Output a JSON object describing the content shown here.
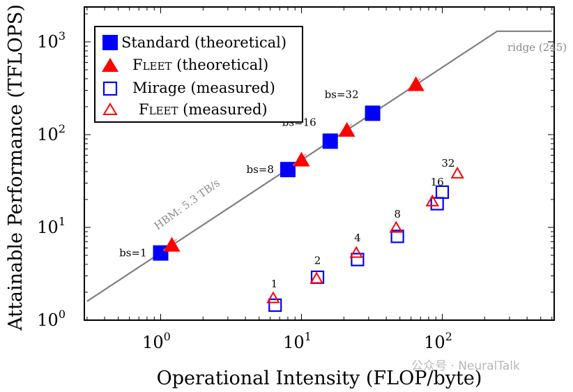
{
  "chart_data": {
    "type": "scatter",
    "xscale": "log",
    "yscale": "log",
    "xlim": [
      0.3,
      600
    ],
    "ylim": [
      1,
      2000
    ],
    "xlabel": "Operational Intensity (FLOP/byte)",
    "ylabel": "Attainable Performance (TFLOPS)",
    "xticks": [
      {
        "base": "10",
        "exp": "0",
        "value": 1
      },
      {
        "base": "10",
        "exp": "1",
        "value": 10
      },
      {
        "base": "10",
        "exp": "2",
        "value": 100
      }
    ],
    "yticks": [
      {
        "base": "10",
        "exp": "0",
        "value": 1
      },
      {
        "base": "10",
        "exp": "1",
        "value": 10
      },
      {
        "base": "10",
        "exp": "2",
        "value": 100
      },
      {
        "base": "10",
        "exp": "3",
        "value": 1000
      }
    ],
    "roofline": {
      "points": [
        [
          0.3,
          1.6
        ],
        [
          245,
          1300
        ],
        [
          600,
          1300
        ]
      ],
      "slope_label": "HBM: 5.3 TB/s",
      "ridge_label": "ridge (245)",
      "color": "#7f7f7f"
    },
    "series": [
      {
        "name": "Standard (theoretical)",
        "marker": "square-filled",
        "color": "#0000ff",
        "points": [
          [
            1,
            5.3
          ],
          [
            8,
            42
          ],
          [
            16,
            85
          ],
          [
            32,
            170
          ]
        ]
      },
      {
        "name": "Fleet (theoretical)",
        "legend_small": "LEET",
        "legend_big": "F",
        "legend_tail": " (theoretical)",
        "marker": "triangle-filled",
        "color": "#ff0000",
        "points": [
          [
            1.2,
            6.4
          ],
          [
            10,
            53
          ],
          [
            21,
            111
          ],
          [
            65,
            345
          ]
        ]
      },
      {
        "name": "Mirage (measured)",
        "marker": "square-open",
        "color": "#0000ff",
        "points": [
          [
            6.5,
            1.45
          ],
          [
            13,
            2.9
          ],
          [
            25,
            4.5
          ],
          [
            48,
            8
          ],
          [
            92,
            18
          ],
          [
            100,
            24
          ]
        ]
      },
      {
        "name": "Fleet (measured)",
        "legend_small": "LEET",
        "legend_big": "F",
        "legend_tail": " (measured)",
        "marker": "triangle-open",
        "color": "#ff0000",
        "points": [
          [
            6.3,
            1.72
          ],
          [
            12.8,
            2.8
          ],
          [
            24.5,
            5.3
          ],
          [
            47,
            9.9
          ],
          [
            85,
            19
          ],
          [
            128,
            38
          ]
        ]
      }
    ],
    "annotations": [
      {
        "text": "bs=1",
        "x": 1,
        "y": 5.3,
        "anchor": "left"
      },
      {
        "text": "bs=8",
        "x": 8,
        "y": 42,
        "anchor": "left"
      },
      {
        "text": "bs=16",
        "x": 16,
        "y": 85,
        "anchor": "upleft"
      },
      {
        "text": "bs=32",
        "x": 32,
        "y": 170,
        "anchor": "upleft"
      },
      {
        "text": "1",
        "x": 6.4,
        "y": 1.6,
        "anchor": "above"
      },
      {
        "text": "2",
        "x": 13,
        "y": 2.85,
        "anchor": "above"
      },
      {
        "text": "4",
        "x": 25,
        "y": 5,
        "anchor": "above"
      },
      {
        "text": "8",
        "x": 48,
        "y": 9,
        "anchor": "above"
      },
      {
        "text": "16",
        "x": 92,
        "y": 20,
        "anchor": "above"
      },
      {
        "text": "32",
        "x": 110,
        "y": 32,
        "anchor": "above"
      }
    ]
  },
  "watermark": "公众号 · NeuralTalk"
}
